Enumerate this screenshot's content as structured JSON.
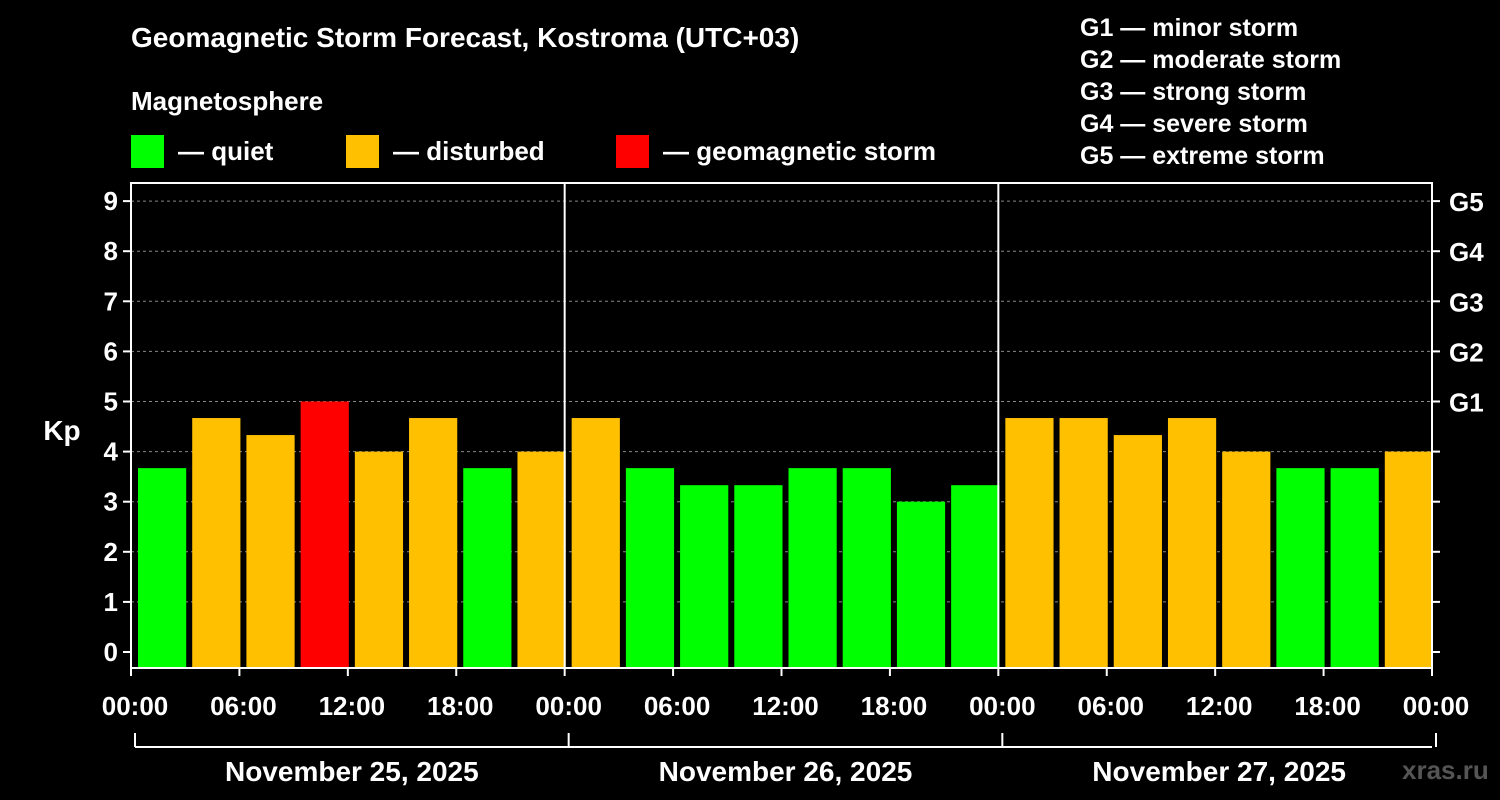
{
  "title": "Geomagnetic Storm Forecast, Kostroma (UTC+03)",
  "legend": {
    "heading": "Magnetosphere",
    "items": [
      {
        "label": "— quiet",
        "color": "#00ff00"
      },
      {
        "label": "— disturbed",
        "color": "#ffc000"
      },
      {
        "label": "— geomagnetic storm",
        "color": "#ff0000"
      }
    ]
  },
  "g_scale": [
    "G1 — minor storm",
    "G2 — moderate storm",
    "G3 — strong storm",
    "G4 — severe storm",
    "G5 — extreme storm"
  ],
  "watermark": "xras.ru",
  "chart_data": {
    "type": "bar",
    "ylabel": "Kp",
    "ylim": [
      0,
      9
    ],
    "yticks": [
      "0",
      "1",
      "2",
      "3",
      "4",
      "5",
      "6",
      "7",
      "8",
      "9"
    ],
    "right_ticks": [
      {
        "value": 5,
        "label": "G1"
      },
      {
        "value": 6,
        "label": "G2"
      },
      {
        "value": 7,
        "label": "G3"
      },
      {
        "value": 8,
        "label": "G4"
      },
      {
        "value": 9,
        "label": "G5"
      }
    ],
    "xticks": [
      "00:00",
      "06:00",
      "12:00",
      "18:00",
      "00:00",
      "06:00",
      "12:00",
      "18:00",
      "00:00",
      "06:00",
      "12:00",
      "18:00",
      "00:00"
    ],
    "days": [
      "November 25, 2025",
      "November 26, 2025",
      "November 27, 2025"
    ],
    "grid": "dashed horizontal",
    "values": [
      3.67,
      4.67,
      4.33,
      5.0,
      4.0,
      4.67,
      3.67,
      4.0,
      4.67,
      3.67,
      3.33,
      3.33,
      3.67,
      3.67,
      3.0,
      3.33,
      4.67,
      4.67,
      4.33,
      4.67,
      4.0,
      3.67,
      3.67,
      4.0
    ],
    "colors": [
      "green",
      "orange",
      "orange",
      "red",
      "orange",
      "orange",
      "green",
      "orange",
      "orange",
      "green",
      "green",
      "green",
      "green",
      "green",
      "green",
      "green",
      "orange",
      "orange",
      "orange",
      "orange",
      "orange",
      "green",
      "green",
      "orange"
    ]
  }
}
